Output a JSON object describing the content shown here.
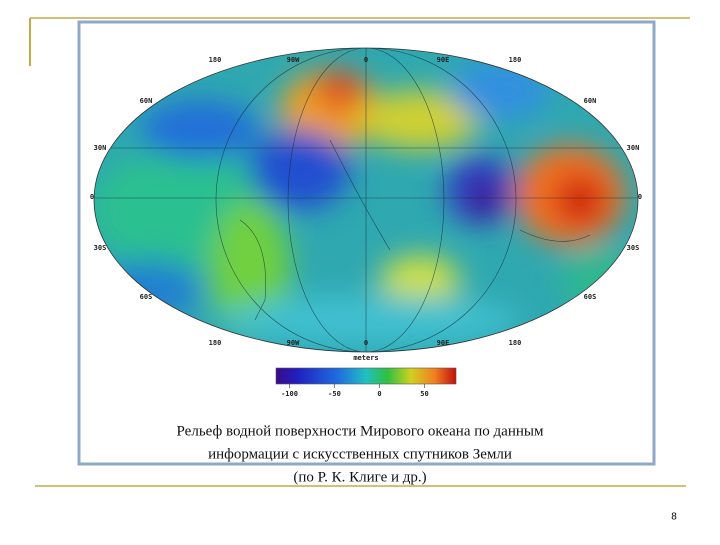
{
  "map": {
    "longitude_labels": [
      "180",
      "90W",
      "0",
      "90E",
      "180"
    ],
    "latitude_labels": [
      "60N",
      "30N",
      "0",
      "30S",
      "60S"
    ],
    "colorbar": {
      "title": "meters",
      "lim": [
        -115,
        85
      ],
      "ticks": [
        -100,
        -50,
        0,
        50
      ]
    }
  },
  "caption": [
    "Рельеф водной поверхности Мирового океана по данным",
    "информации с искусственных спутников Земли",
    "(по Р. К. Клиге и др.)"
  ],
  "page_number": "8"
}
